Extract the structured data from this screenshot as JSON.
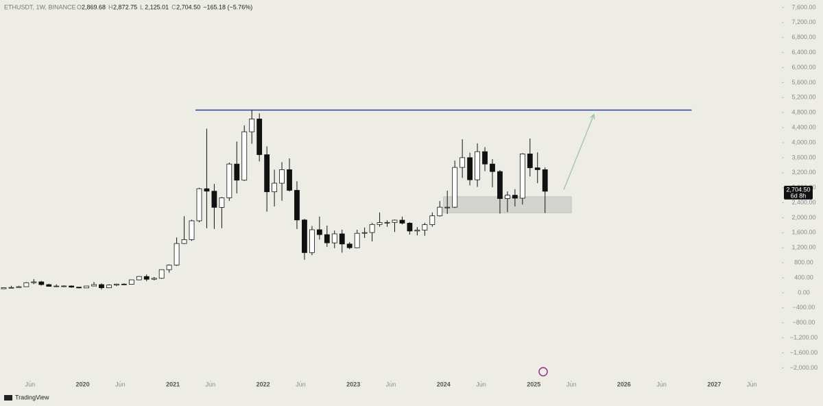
{
  "chart_data": {
    "type": "candlestick",
    "header": {
      "symbol": "ETHUSDT, 1W, BINANCE",
      "items": [
        {
          "key": "O",
          "text": "2,869.68"
        },
        {
          "key": "H",
          "text": "2,872.75"
        },
        {
          "key": "L",
          "text": "2,125.01"
        },
        {
          "key": "C",
          "text": "2,704.50"
        }
      ],
      "change": "−165.18 (−5.76%)"
    },
    "x": [
      "2019-02",
      "2019-03",
      "2019-04",
      "2019-05",
      "2019-06",
      "2019-07",
      "2019-08",
      "2019-09",
      "2019-10",
      "2019-11",
      "2019-12",
      "2020-01",
      "2020-02",
      "2020-03",
      "2020-04",
      "2020-05",
      "2020-06",
      "2020-07",
      "2020-08",
      "2020-09",
      "2020-10",
      "2020-11",
      "2020-12",
      "2021-01",
      "2021-02",
      "2021-03",
      "2021-04",
      "2021-05",
      "2021-06",
      "2021-07",
      "2021-08",
      "2021-09",
      "2021-10",
      "2021-11",
      "2021-12",
      "2022-01",
      "2022-02",
      "2022-03",
      "2022-04",
      "2022-05",
      "2022-06",
      "2022-07",
      "2022-08",
      "2022-09",
      "2022-10",
      "2022-11",
      "2022-12",
      "2023-01",
      "2023-02",
      "2023-03",
      "2023-04",
      "2023-05",
      "2023-06",
      "2023-07",
      "2023-08",
      "2023-09",
      "2023-10",
      "2023-11",
      "2023-12",
      "2024-01",
      "2024-02",
      "2024-03",
      "2024-04",
      "2024-05",
      "2024-06",
      "2024-07",
      "2024-08",
      "2024-09",
      "2024-10",
      "2024-11",
      "2024-12",
      "2025-01",
      "2025-02"
    ],
    "open": [
      107,
      136,
      141,
      162,
      268,
      291,
      218,
      172,
      180,
      182,
      151,
      130,
      180,
      218,
      133,
      206,
      231,
      226,
      345,
      434,
      360,
      386,
      616,
      737,
      1313,
      1417,
      1918,
      2773,
      2707,
      2275,
      2530,
      3430,
      3000,
      4290,
      4630,
      3680,
      2690,
      2920,
      3280,
      2730,
      1940,
      1070,
      1680,
      1550,
      1330,
      1570,
      1300,
      1200,
      1585,
      1605,
      1820,
      1870,
      1875,
      1935,
      1855,
      1645,
      1670,
      1815,
      2050,
      2280,
      2280,
      3340,
      3600,
      3010,
      3760,
      3430,
      3230,
      2510,
      2600,
      2520,
      3700,
      3330,
      3280
    ],
    "high": [
      137,
      185,
      185,
      285,
      365,
      318,
      240,
      224,
      197,
      195,
      153,
      185,
      288,
      253,
      227,
      245,
      253,
      350,
      445,
      488,
      420,
      622,
      756,
      1475,
      2040,
      1947,
      2797,
      4372,
      2900,
      2550,
      3470,
      4030,
      4460,
      4868,
      4780,
      3900,
      3280,
      3480,
      3580,
      2970,
      1970,
      1780,
      2030,
      1790,
      1660,
      1680,
      1350,
      1680,
      1740,
      1860,
      2140,
      1930,
      1950,
      2030,
      1880,
      1750,
      1865,
      2140,
      2445,
      2720,
      3520,
      4090,
      3730,
      3980,
      3880,
      3560,
      3270,
      2700,
      2760,
      3720,
      4110,
      3740,
      3340
    ],
    "low": [
      101,
      131,
      138,
      156,
      230,
      191,
      163,
      151,
      152,
      132,
      117,
      127,
      176,
      86,
      127,
      176,
      215,
      222,
      334,
      308,
      334,
      372,
      536,
      715,
      1300,
      1384,
      1880,
      1720,
      1700,
      1720,
      2450,
      2650,
      2980,
      3970,
      3500,
      2160,
      2300,
      2450,
      2700,
      1700,
      880,
      1000,
      1420,
      1220,
      1190,
      1070,
      1160,
      1190,
      1460,
      1370,
      1760,
      1760,
      1620,
      1820,
      1550,
      1530,
      1520,
      1760,
      2030,
      2100,
      2260,
      3060,
      2860,
      2820,
      3240,
      2810,
      2110,
      2150,
      2300,
      2350,
      3100,
      2920,
      2125
    ],
    "close": [
      136,
      141,
      162,
      268,
      291,
      218,
      172,
      180,
      182,
      151,
      130,
      180,
      218,
      133,
      206,
      231,
      226,
      345,
      434,
      360,
      386,
      616,
      737,
      1313,
      1417,
      1918,
      2773,
      2707,
      2275,
      2530,
      3430,
      3000,
      4290,
      4630,
      3680,
      2690,
      2920,
      3280,
      2730,
      1940,
      1070,
      1680,
      1550,
      1330,
      1570,
      1300,
      1200,
      1585,
      1605,
      1820,
      1870,
      1875,
      1935,
      1855,
      1645,
      1670,
      1815,
      2050,
      2280,
      2280,
      3340,
      3600,
      3010,
      3760,
      3430,
      3230,
      2510,
      2600,
      2520,
      3700,
      3330,
      3280,
      2704.5
    ],
    "up_color": "#ffffff",
    "down_color": "#111111",
    "wick_color": "#111111",
    "xlim": [
      "2019-02",
      "2027-10"
    ],
    "xticks": [
      {
        "value": "2019-06",
        "label": "Jun"
      },
      {
        "value": "2020-01",
        "label": "2020"
      },
      {
        "value": "2020-06",
        "label": "Jun"
      },
      {
        "value": "2021-01",
        "label": "2021"
      },
      {
        "value": "2021-06",
        "label": "Jun"
      },
      {
        "value": "2022-01",
        "label": "2022"
      },
      {
        "value": "2022-06",
        "label": "Jun"
      },
      {
        "value": "2023-01",
        "label": "2023"
      },
      {
        "value": "2023-06",
        "label": "Jun"
      },
      {
        "value": "2024-01",
        "label": "2024"
      },
      {
        "value": "2024-06",
        "label": "Jun"
      },
      {
        "value": "2025-01",
        "label": "2025"
      },
      {
        "value": "2025-06",
        "label": "Jun"
      },
      {
        "value": "2026-01",
        "label": "2026"
      },
      {
        "value": "2026-06",
        "label": "Jun"
      },
      {
        "value": "2027-01",
        "label": "2027"
      },
      {
        "value": "2027-06",
        "label": "Jun"
      }
    ],
    "ylim": [
      -2340,
      7800
    ],
    "yticks": [
      {
        "value": 7600,
        "label": "7,600.00"
      },
      {
        "value": 7200,
        "label": "7,200.00"
      },
      {
        "value": 6800,
        "label": "6,800.00"
      },
      {
        "value": 6400,
        "label": "6,400.00"
      },
      {
        "value": 6000,
        "label": "6,000.00"
      },
      {
        "value": 5600,
        "label": "5,600.00"
      },
      {
        "value": 5200,
        "label": "5,200.00"
      },
      {
        "value": 4800,
        "label": "4,800.00"
      },
      {
        "value": 4400,
        "label": "4,400.00"
      },
      {
        "value": 4000,
        "label": "4,000.00"
      },
      {
        "value": 3600,
        "label": "3,600.00"
      },
      {
        "value": 3200,
        "label": "3,200.00"
      },
      {
        "value": 2800,
        "label": "2,800.00"
      },
      {
        "value": 2400,
        "label": "2,400.00"
      },
      {
        "value": 2000,
        "label": "2,000.00"
      },
      {
        "value": 1600,
        "label": "1,600.00"
      },
      {
        "value": 1200,
        "label": "1,200.00"
      },
      {
        "value": 800,
        "label": "800.00"
      },
      {
        "value": 400,
        "label": "400.00"
      },
      {
        "value": 0,
        "label": "0.00"
      },
      {
        "value": -400,
        "label": "−400.00"
      },
      {
        "value": -800,
        "label": "−800.00"
      },
      {
        "value": -1200,
        "label": "−1,200.00"
      },
      {
        "value": -1600,
        "label": "−1,600.00"
      },
      {
        "value": -2000,
        "label": "−2,000.00"
      }
    ],
    "price_tag": {
      "value": 2704.5,
      "label": "2,704.50",
      "countdown": "6d 8h"
    },
    "drawings": {
      "resistance": {
        "y": 4868,
        "x": [
          "2021-04",
          "2026-10"
        ],
        "color": "#2b3a9a"
      },
      "support_zone": {
        "y": [
          2130,
          2560
        ],
        "x": [
          "2024-01",
          "2025-06"
        ],
        "color": "#d3d3cf"
      },
      "arrow": {
        "y": [
          2750,
          4750
        ],
        "x": [
          "2025-05",
          "2025-09"
        ],
        "color": "#8fc49a"
      }
    },
    "brand": "TradingView"
  }
}
